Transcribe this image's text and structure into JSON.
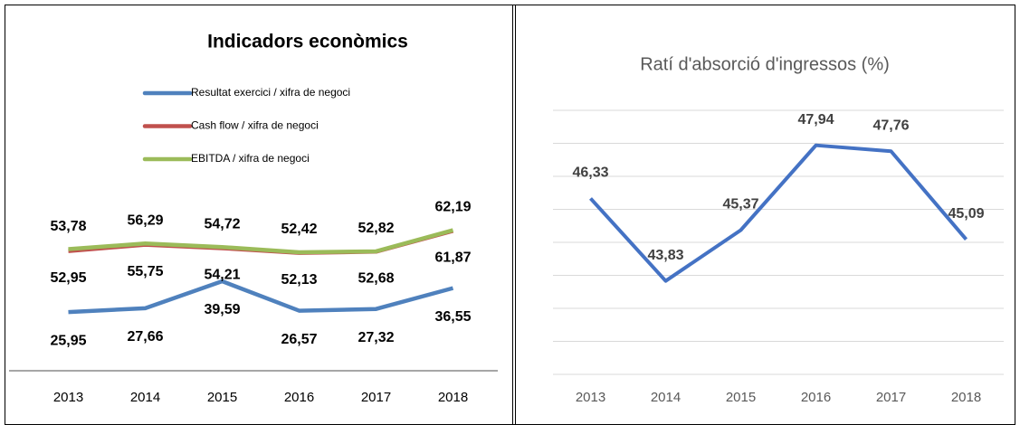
{
  "chart_data": [
    {
      "type": "line",
      "title": "Indicadors econòmics",
      "categories": [
        "2013",
        "2014",
        "2015",
        "2016",
        "2017",
        "2018"
      ],
      "ylim": [
        0,
        100
      ],
      "series": [
        {
          "name": "Resultat exercici / xifra de negoci",
          "color": "#4f81bd",
          "values": [
            25.95,
            27.66,
            39.59,
            26.57,
            27.32,
            36.55
          ],
          "value_labels": [
            "25,95",
            "27,66",
            "39,59",
            "26,57",
            "27,32",
            "36,55"
          ]
        },
        {
          "name": "Cash flow / xifra de negoci",
          "color": "#c0504d",
          "values": [
            52.95,
            55.75,
            54.21,
            52.13,
            52.68,
            61.87
          ],
          "value_labels": [
            "52,95",
            "55,75",
            "54,21",
            "52,13",
            "52,68",
            "61,87"
          ]
        },
        {
          "name": "EBITDA / xifra de negoci",
          "color": "#9bbb59",
          "values": [
            53.78,
            56.29,
            54.72,
            52.42,
            52.82,
            62.19
          ],
          "value_labels": [
            "53,78",
            "56,29",
            "54,72",
            "52,42",
            "52,82",
            "62,19"
          ]
        }
      ]
    },
    {
      "type": "line",
      "title": "Ratí d'absorció d'ingressos (%)",
      "categories": [
        "2013",
        "2014",
        "2015",
        "2016",
        "2017",
        "2018"
      ],
      "ylim": [
        41,
        49
      ],
      "yticks": [
        41,
        42,
        43,
        44,
        45,
        46,
        47,
        48,
        49
      ],
      "grid": true,
      "series": [
        {
          "color": "#4472c4",
          "values": [
            46.33,
            43.83,
            45.37,
            47.94,
            47.76,
            45.09
          ],
          "value_labels": [
            "46,33",
            "43,83",
            "45,37",
            "47,94",
            "47,76",
            "45,09"
          ]
        }
      ]
    }
  ]
}
